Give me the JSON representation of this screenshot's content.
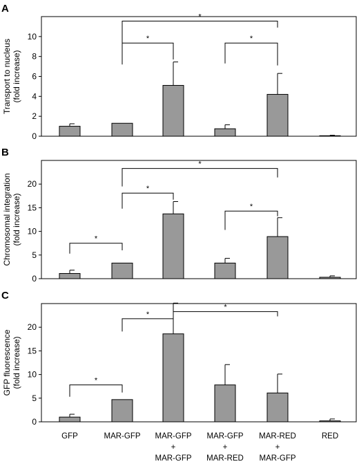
{
  "chart_data": [
    {
      "type": "bar",
      "panel": "A",
      "ylabel_lines": [
        "Transport to nucleus",
        "(fold increase)"
      ],
      "ylim": [
        0,
        12
      ],
      "yticks": [
        0,
        2,
        4,
        6,
        8,
        10
      ],
      "categories": [
        "GFP",
        "MAR-GFP",
        "MAR-GFP + MAR-GFP",
        "MAR-GFP + MAR-RED",
        "MAR-RED + MAR-GFP",
        "RED"
      ],
      "values": [
        1.0,
        1.3,
        5.1,
        0.75,
        4.2,
        0.05
      ],
      "errors": [
        0.25,
        0.0,
        2.35,
        0.4,
        2.1,
        0.05
      ],
      "significance": [
        {
          "from": 1,
          "to": 4,
          "level": 1,
          "label": "*"
        },
        {
          "from": 1,
          "to": 2,
          "level": 0,
          "label": "*"
        },
        {
          "from": 3,
          "to": 4,
          "level": 0,
          "label": "*"
        }
      ]
    },
    {
      "type": "bar",
      "panel": "B",
      "ylabel_lines": [
        "Chromosomal integration",
        "(fold increase)"
      ],
      "ylim": [
        0,
        25
      ],
      "yticks": [
        0,
        5,
        10,
        15,
        20
      ],
      "categories": [
        "GFP",
        "MAR-GFP",
        "MAR-GFP + MAR-GFP",
        "MAR-GFP + MAR-RED",
        "MAR-RED + MAR-GFP",
        "RED"
      ],
      "values": [
        1.1,
        3.3,
        13.7,
        3.3,
        8.9,
        0.3
      ],
      "errors": [
        0.7,
        0.0,
        2.6,
        1.0,
        4.0,
        0.3
      ],
      "significance": [
        {
          "from": 1,
          "to": 4,
          "level": 1,
          "label": "*"
        },
        {
          "from": 1,
          "to": 2,
          "level": 0,
          "label": "*"
        },
        {
          "from": 3,
          "to": 4,
          "level": 0,
          "label": "*"
        },
        {
          "from": 0,
          "to": 1,
          "level": 0,
          "label": "*"
        }
      ]
    },
    {
      "type": "bar",
      "panel": "C",
      "ylabel_lines": [
        "GFP fluorescence",
        "(fold increase)"
      ],
      "ylim": [
        0,
        25
      ],
      "yticks": [
        0,
        5,
        10,
        15,
        20
      ],
      "categories": [
        "GFP",
        "MAR-GFP",
        "MAR-GFP + MAR-GFP",
        "MAR-GFP + MAR-RED",
        "MAR-RED + MAR-GFP",
        "RED"
      ],
      "values": [
        1.0,
        4.7,
        18.6,
        7.8,
        6.1,
        0.2
      ],
      "errors": [
        0.6,
        0.0,
        6.5,
        4.3,
        4.0,
        0.4
      ],
      "significance": [
        {
          "from": 0,
          "to": 1,
          "level": 0,
          "label": "*"
        },
        {
          "from": 1,
          "to": 2,
          "level": 0,
          "label": "*"
        },
        {
          "from": 2,
          "to": 4,
          "level": 0,
          "label": "*"
        }
      ]
    }
  ],
  "x_category_labels": [
    [
      "GFP"
    ],
    [
      "MAR-GFP"
    ],
    [
      "MAR-GFP",
      "+",
      "MAR-GFP"
    ],
    [
      "MAR-GFP",
      "+",
      "MAR-RED"
    ],
    [
      "MAR-RED",
      "+",
      "MAR-GFP"
    ],
    [
      "RED"
    ]
  ],
  "colors": {
    "bar_fill": "#999999",
    "bar_stroke": "#000000",
    "axis": "#000000"
  }
}
